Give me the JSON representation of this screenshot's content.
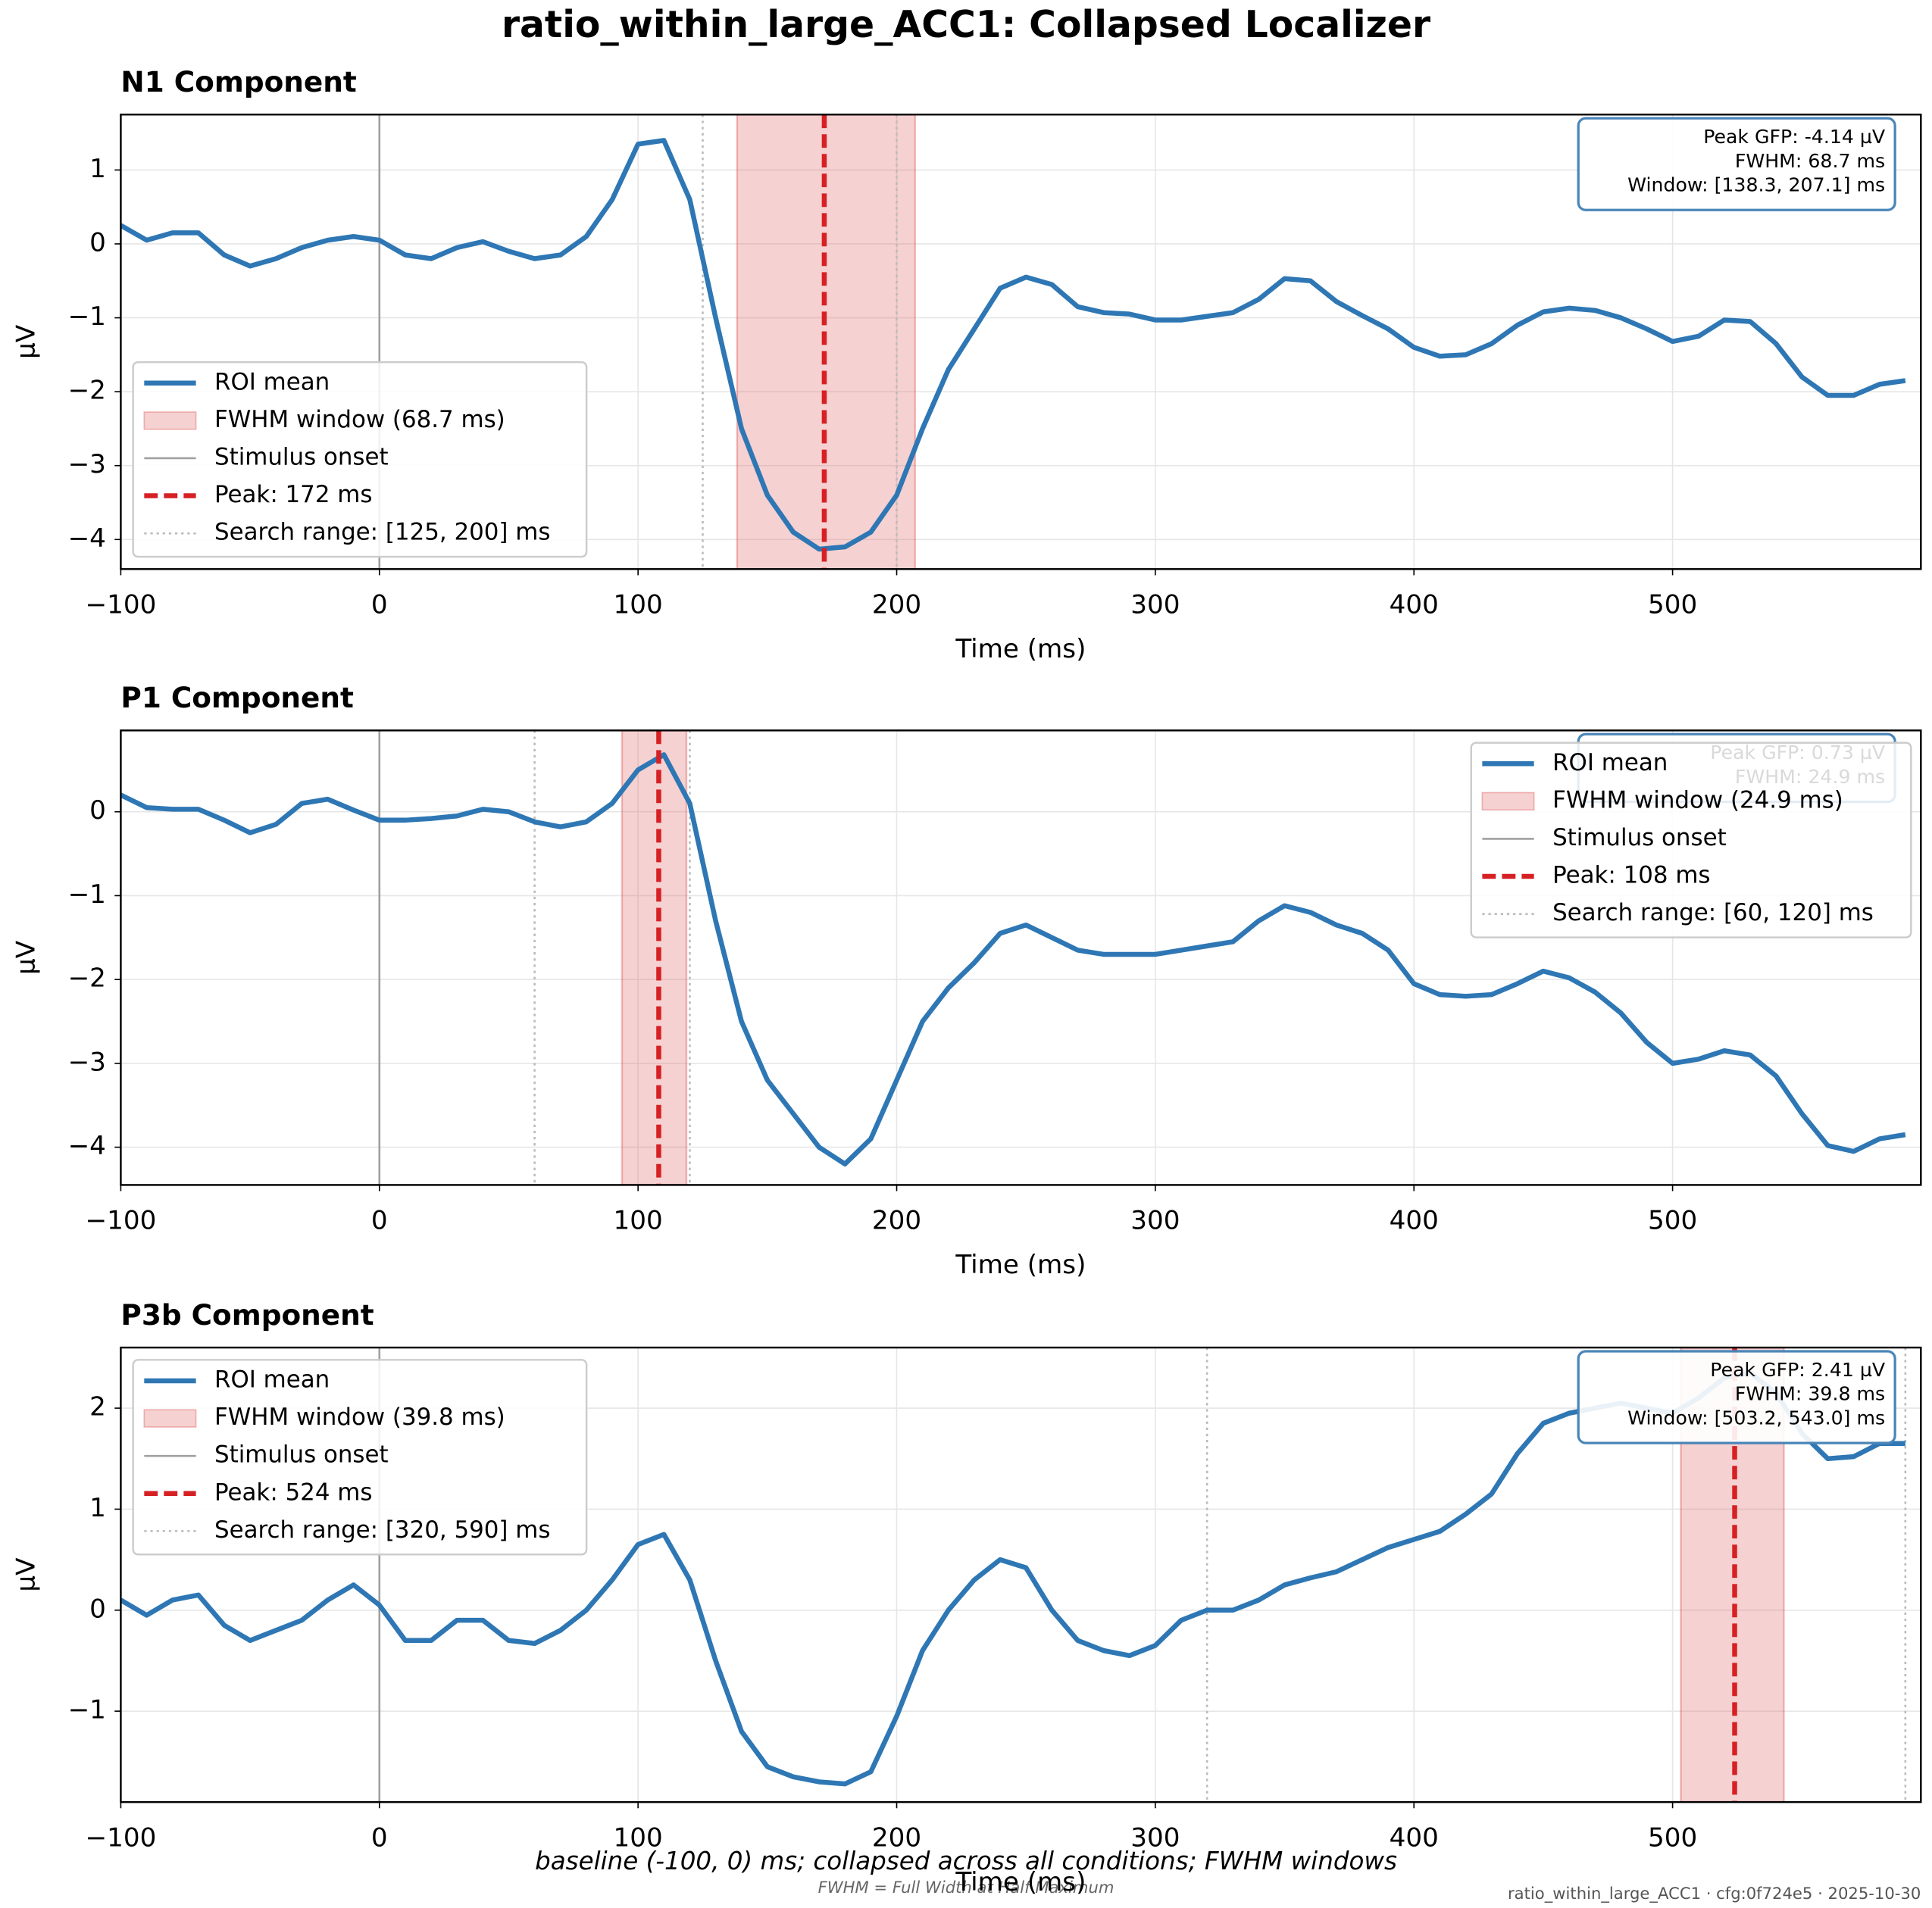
{
  "title": "ratio_within_large_ACC1: Collapsed Localizer",
  "footer_caption": "baseline (-100, 0) ms; collapsed across all conditions; FWHM windows",
  "footer_note": "FWHM = Full Width at Half Maximum",
  "footer_stamp": "ratio_within_large_ACC1 · cfg:0f724e5 · 2025-10-30",
  "chart_data": [
    {
      "type": "line",
      "title": "N1 Component",
      "xlabel": "Time (ms)",
      "ylabel": "µV",
      "x": [
        -100,
        -90,
        -80,
        -70,
        -60,
        -50,
        -40,
        -30,
        -20,
        -10,
        0,
        10,
        20,
        30,
        40,
        50,
        60,
        70,
        80,
        90,
        100,
        110,
        120,
        130,
        140,
        150,
        160,
        170,
        180,
        190,
        200,
        210,
        220,
        230,
        240,
        250,
        260,
        270,
        280,
        290,
        300,
        310,
        320,
        330,
        340,
        350,
        360,
        370,
        380,
        390,
        400,
        410,
        420,
        430,
        440,
        450,
        460,
        470,
        480,
        490,
        500,
        510,
        520,
        530,
        540,
        550,
        560,
        570,
        580,
        590
      ],
      "series": [
        {
          "name": "ROI mean",
          "color": "#2e77b4",
          "values": [
            0.25,
            0.05,
            0.15,
            0.15,
            -0.15,
            -0.3,
            -0.2,
            -0.05,
            0.05,
            0.1,
            0.05,
            -0.15,
            -0.2,
            -0.05,
            0.03,
            -0.1,
            -0.2,
            -0.15,
            0.1,
            0.6,
            1.35,
            1.4,
            0.6,
            -1.0,
            -2.5,
            -3.4,
            -3.9,
            -4.13,
            -4.1,
            -3.9,
            -3.4,
            -2.5,
            -1.7,
            -1.15,
            -0.6,
            -0.45,
            -0.55,
            -0.85,
            -0.93,
            -0.95,
            -1.03,
            -1.03,
            -0.98,
            -0.93,
            -0.75,
            -0.47,
            -0.5,
            -0.78,
            -0.97,
            -1.15,
            -1.4,
            -1.52,
            -1.5,
            -1.35,
            -1.1,
            -0.92,
            -0.87,
            -0.9,
            -1.0,
            -1.15,
            -1.32,
            -1.25,
            -1.03,
            -1.05,
            -1.35,
            -1.8,
            -2.05,
            -2.05,
            -1.9,
            -1.85
          ]
        }
      ],
      "xlim": [
        -100,
        596
      ],
      "ylim": [
        -4.4,
        1.75
      ],
      "xticks": [
        {
          "value": -100,
          "label": "−100"
        },
        0,
        100,
        200,
        300,
        400,
        500
      ],
      "yticks": [
        {
          "value": -4,
          "label": "−4"
        },
        {
          "value": -3,
          "label": "−3"
        },
        {
          "value": -2,
          "label": "−2"
        },
        {
          "value": -1,
          "label": "−1"
        },
        0,
        1
      ],
      "grid": true,
      "legend": "lower left",
      "window": [
        138.3,
        207.1
      ],
      "window_label": "FWHM window (68.7 ms)",
      "window_color": "#e06666",
      "onset": 0,
      "onset_label": "Stimulus onset",
      "onset_color": "#a0a0a0",
      "peak": 172,
      "peak_label": "Peak: 172 ms",
      "peak_color": "#d62024",
      "search": [
        125,
        200
      ],
      "search_label": "Search range: [125, 200] ms",
      "info": [
        "Peak GFP: -4.14 µV",
        "FWHM: 68.7 ms",
        "Window: [138.3, 207.1] ms"
      ]
    },
    {
      "type": "line",
      "title": "P1 Component",
      "xlabel": "Time (ms)",
      "ylabel": "µV",
      "x": [
        -100,
        -90,
        -80,
        -70,
        -60,
        -50,
        -40,
        -30,
        -20,
        -10,
        0,
        10,
        20,
        30,
        40,
        50,
        60,
        70,
        80,
        90,
        100,
        110,
        120,
        130,
        140,
        150,
        160,
        170,
        180,
        190,
        200,
        210,
        220,
        230,
        240,
        250,
        260,
        270,
        280,
        290,
        300,
        310,
        320,
        330,
        340,
        350,
        360,
        370,
        380,
        390,
        400,
        410,
        420,
        430,
        440,
        450,
        460,
        470,
        480,
        490,
        500,
        510,
        520,
        530,
        540,
        550,
        560,
        570,
        580,
        590
      ],
      "series": [
        {
          "name": "ROI mean",
          "color": "#2e77b4",
          "values": [
            0.2,
            0.05,
            0.03,
            0.03,
            -0.1,
            -0.25,
            -0.15,
            0.1,
            0.15,
            0.02,
            -0.1,
            -0.1,
            -0.08,
            -0.05,
            0.03,
            0.0,
            -0.12,
            -0.18,
            -0.12,
            0.1,
            0.5,
            0.68,
            0.1,
            -1.3,
            -2.5,
            -3.2,
            -3.6,
            -4.0,
            -4.2,
            -3.9,
            -3.2,
            -2.5,
            -2.1,
            -1.8,
            -1.45,
            -1.35,
            -1.5,
            -1.65,
            -1.7,
            -1.7,
            -1.7,
            -1.65,
            -1.6,
            -1.55,
            -1.3,
            -1.12,
            -1.2,
            -1.35,
            -1.45,
            -1.65,
            -2.05,
            -2.18,
            -2.2,
            -2.18,
            -2.05,
            -1.9,
            -1.98,
            -2.15,
            -2.4,
            -2.75,
            -3.0,
            -2.95,
            -2.85,
            -2.9,
            -3.15,
            -3.6,
            -3.98,
            -4.05,
            -3.9,
            -3.85
          ]
        }
      ],
      "xlim": [
        -100,
        596
      ],
      "ylim": [
        -4.45,
        0.97
      ],
      "xticks": [
        {
          "value": -100,
          "label": "−100"
        },
        0,
        100,
        200,
        300,
        400,
        500
      ],
      "yticks": [
        {
          "value": -4,
          "label": "−4"
        },
        {
          "value": -3,
          "label": "−3"
        },
        {
          "value": -2,
          "label": "−2"
        },
        {
          "value": -1,
          "label": "−1"
        },
        0
      ],
      "grid": true,
      "legend": "upper right",
      "window": [
        93.8,
        118.7
      ],
      "window_label": "FWHM window (24.9 ms)",
      "window_color": "#e06666",
      "onset": 0,
      "onset_label": "Stimulus onset",
      "onset_color": "#a0a0a0",
      "peak": 108,
      "peak_label": "Peak: 108 ms",
      "peak_color": "#d62024",
      "search": [
        60,
        120
      ],
      "search_label": "Search range: [60, 120] ms",
      "info": [
        "Peak GFP: 0.73 µV",
        "FWHM: 24.9 ms"
      ]
    },
    {
      "type": "line",
      "title": "P3b Component",
      "xlabel": "Time (ms)",
      "ylabel": "µV",
      "x": [
        -100,
        -90,
        -80,
        -70,
        -60,
        -50,
        -40,
        -30,
        -20,
        -10,
        0,
        10,
        20,
        30,
        40,
        50,
        60,
        70,
        80,
        90,
        100,
        110,
        120,
        130,
        140,
        150,
        160,
        170,
        180,
        190,
        200,
        210,
        220,
        230,
        240,
        250,
        260,
        270,
        280,
        290,
        300,
        310,
        320,
        330,
        340,
        350,
        360,
        370,
        380,
        390,
        400,
        410,
        420,
        430,
        440,
        450,
        460,
        470,
        480,
        490,
        500,
        510,
        520,
        530,
        540,
        550,
        560,
        570,
        580,
        590
      ],
      "series": [
        {
          "name": "ROI mean",
          "color": "#2e77b4",
          "values": [
            0.1,
            -0.05,
            0.1,
            0.15,
            -0.15,
            -0.3,
            -0.2,
            -0.1,
            0.1,
            0.25,
            0.05,
            -0.3,
            -0.3,
            -0.1,
            -0.1,
            -0.3,
            -0.33,
            -0.2,
            0.0,
            0.3,
            0.65,
            0.75,
            0.3,
            -0.5,
            -1.2,
            -1.55,
            -1.65,
            -1.7,
            -1.72,
            -1.6,
            -1.05,
            -0.4,
            0.0,
            0.3,
            0.5,
            0.42,
            0.0,
            -0.3,
            -0.4,
            -0.45,
            -0.35,
            -0.1,
            0.0,
            0.0,
            0.1,
            0.25,
            0.32,
            0.38,
            0.5,
            0.62,
            0.7,
            0.78,
            0.95,
            1.15,
            1.55,
            1.85,
            1.95,
            2.0,
            2.05,
            2.0,
            1.95,
            2.1,
            2.3,
            2.35,
            2.15,
            1.75,
            1.5,
            1.52,
            1.65,
            1.65
          ]
        }
      ],
      "xlim": [
        -100,
        596
      ],
      "ylim": [
        -1.9,
        2.6
      ],
      "xticks": [
        {
          "value": -100,
          "label": "−100"
        },
        0,
        100,
        200,
        300,
        400,
        500
      ],
      "yticks": [
        {
          "value": -1,
          "label": "−1"
        },
        0,
        1,
        2
      ],
      "grid": true,
      "legend": "upper left",
      "window": [
        503.2,
        543.0
      ],
      "window_label": "FWHM window (39.8 ms)",
      "window_color": "#e06666",
      "onset": 0,
      "onset_label": "Stimulus onset",
      "onset_color": "#a0a0a0",
      "peak": 524,
      "peak_label": "Peak: 524 ms",
      "peak_color": "#d62024",
      "search": [
        320,
        590
      ],
      "search_label": "Search range: [320, 590] ms",
      "info": [
        "Peak GFP: 2.41 µV",
        "FWHM: 39.8 ms",
        "Window: [503.2, 543.0] ms"
      ]
    }
  ]
}
